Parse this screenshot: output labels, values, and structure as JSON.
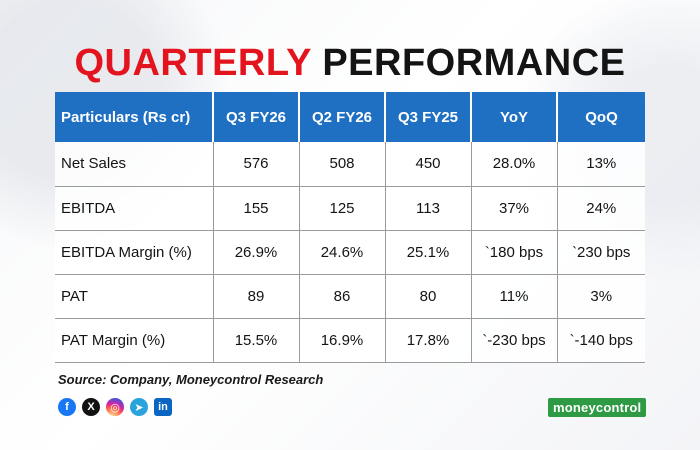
{
  "title": {
    "part1": "QUARTERLY",
    "part2": "PERFORMANCE"
  },
  "colors": {
    "title_red": "#e3141d",
    "header_blue": "#1f6fc2",
    "logo_green": "#2e9a44"
  },
  "table": {
    "headers": [
      "Particulars (Rs cr)",
      "Q3 FY26",
      "Q2 FY26",
      "Q3 FY25",
      "YoY",
      "QoQ"
    ],
    "rows": [
      [
        "Net Sales",
        "576",
        "508",
        "450",
        "28.0%",
        "13%"
      ],
      [
        "EBITDA",
        "155",
        "125",
        "113",
        "37%",
        "24%"
      ],
      [
        "EBITDA Margin (%)",
        "26.9%",
        "24.6%",
        "25.1%",
        "`180 bps",
        "`230 bps"
      ],
      [
        "PAT",
        "89",
        "86",
        "80",
        "11%",
        "3%"
      ],
      [
        "PAT Margin (%)",
        "15.5%",
        "16.9%",
        "17.8%",
        "`-230 bps",
        "`-140 bps"
      ]
    ]
  },
  "source": "Source: Company, Moneycontrol Research",
  "social_icons": [
    "facebook-icon",
    "x-icon",
    "instagram-icon",
    "telegram-icon",
    "linkedin-icon"
  ],
  "social_glyphs": {
    "facebook": "f",
    "x": "X",
    "instagram": "◎",
    "telegram": "➤",
    "linkedin": "in"
  },
  "logo": "moneycontrol"
}
